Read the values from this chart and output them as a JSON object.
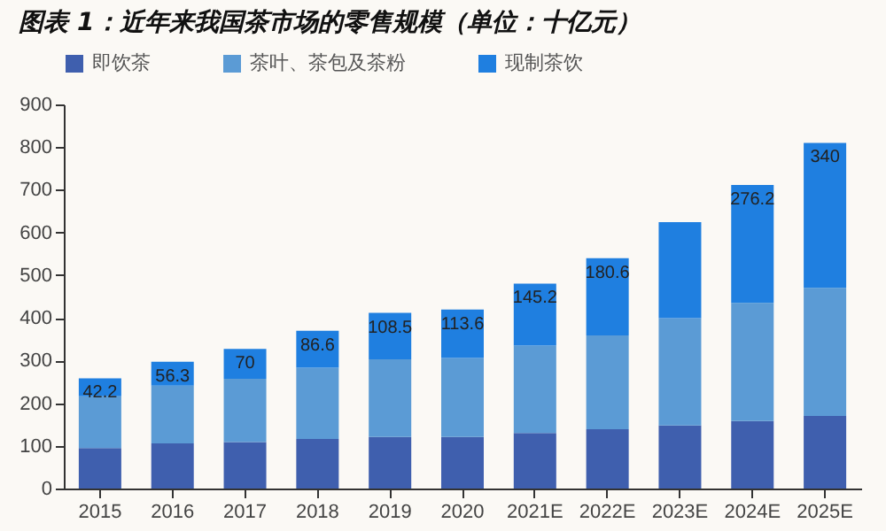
{
  "chart_data": {
    "type": "bar",
    "title": "图表 1：近年来我国茶市场的零售规模（单位：十亿元）",
    "stacked": true,
    "legend": "top",
    "categories": [
      "2015",
      "2016",
      "2017",
      "2018",
      "2019",
      "2020",
      "2021E",
      "2022E",
      "2023E",
      "2024E",
      "2025E"
    ],
    "series": [
      {
        "name": "即饮茶",
        "color": "#3f5fae",
        "values": [
          95,
          106,
          109,
          116,
          121,
          121,
          130,
          139,
          148,
          158,
          170
        ]
      },
      {
        "name": "茶叶、茶包及茶粉",
        "color": "#5b9bd5",
        "values": [
          121,
          135,
          148,
          167,
          182,
          185,
          205,
          220,
          251,
          277,
          300
        ]
      },
      {
        "name": "现制茶饮",
        "color": "#1f7fe0",
        "values": [
          42.2,
          56.3,
          70,
          86.6,
          108.5,
          113.6,
          145.2,
          180.6,
          225,
          276.2,
          340
        ],
        "value_labels": [
          "42.2",
          "56.3",
          "70",
          "86.6",
          "108.5",
          "113.6",
          "145.2",
          "180.6",
          null,
          "276.2",
          "340"
        ]
      }
    ],
    "ylim": [
      0,
      900
    ],
    "yticks": [
      0,
      100,
      200,
      300,
      400,
      500,
      600,
      700,
      800,
      900
    ]
  }
}
